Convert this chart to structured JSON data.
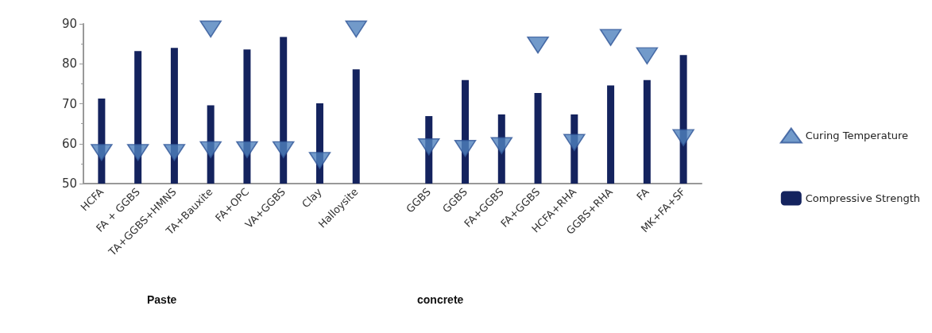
{
  "chart_data": {
    "type": "bar",
    "categories": [
      "HCFA",
      "FA + GGBS",
      "TA+GGBS+HMNS",
      "TA+Bauxite",
      "FA+OPC",
      "VA+GGBS",
      "Clay",
      "Halloysite",
      null,
      "GGBS",
      "GGBS",
      "FA+GGBS",
      "FA+GGBS",
      "HCFA+RHA",
      "GGBS+RHA",
      "FA",
      "MK+FA+SF"
    ],
    "series": [
      {
        "name": "Curing Temperature",
        "type": "scatter",
        "color": "#4f81bd",
        "marker": "triangle",
        "values": [
          57.8,
          57.8,
          57.8,
          58.5,
          58.5,
          58.5,
          55.8,
          88.7,
          null,
          59.2,
          58.8,
          59.5,
          84.7,
          60.3,
          86.6,
          82,
          61.5
        ]
      },
      {
        "type": "scatter",
        "color": "#4f81bd",
        "marker": "triangle",
        "values": [
          null,
          null,
          null,
          88.7,
          null,
          null,
          null,
          null,
          null,
          null,
          null,
          null,
          null,
          null,
          null,
          null,
          null
        ]
      },
      {
        "name": "Compressive Strength",
        "color": "#14235e",
        "values": [
          71.3,
          83.2,
          84,
          69.6,
          83.6,
          86.7,
          70.1,
          78.6,
          null,
          66.9,
          75.9,
          67.3,
          72.7,
          67.3,
          74.6,
          75.9,
          82.2
        ]
      }
    ],
    "ylim": [
      50,
      90
    ],
    "yticks": [
      50,
      60,
      70,
      80,
      90
    ],
    "grid": false,
    "legend": "right",
    "annotations": [
      "Paste",
      "concrete"
    ]
  }
}
